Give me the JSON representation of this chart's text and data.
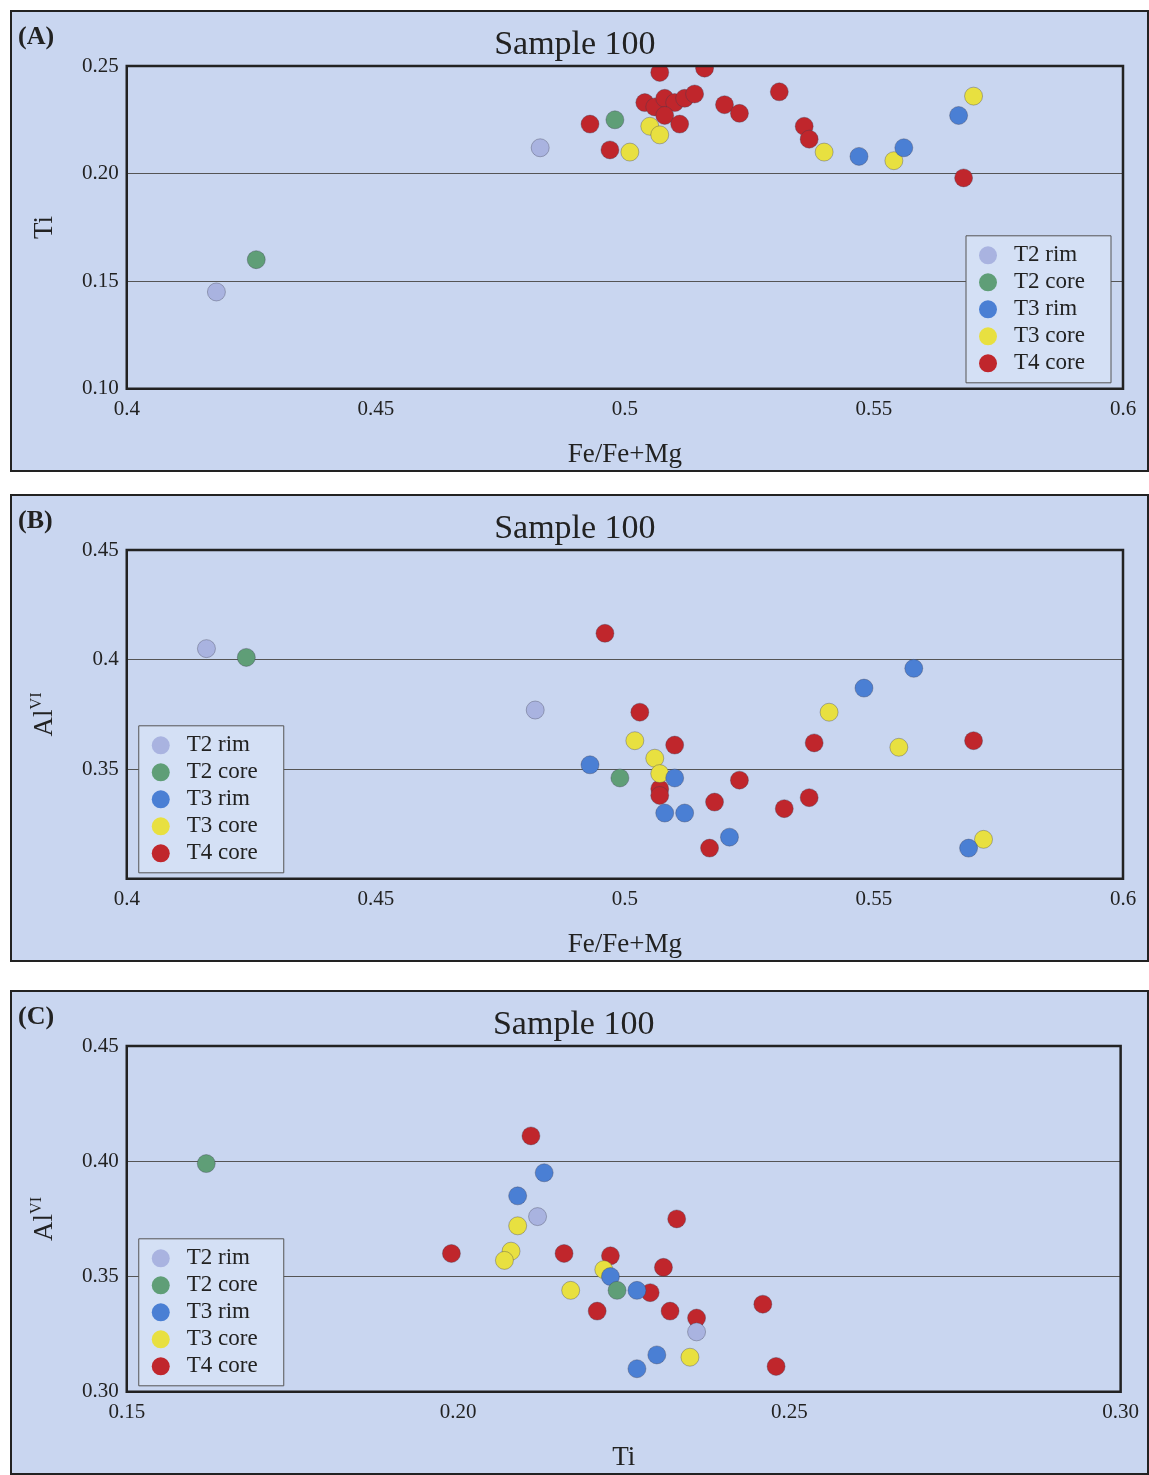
{
  "chart_data": [
    {
      "type": "scatter",
      "title": "Sample 100",
      "xlabel": "Fe/Fe+Mg",
      "ylabel": "Ti",
      "annotations": [
        "(A)"
      ],
      "xlim": [
        0.4,
        0.6
      ],
      "xticks": [
        0.4,
        0.45,
        0.5,
        0.55,
        0.6
      ],
      "ylim": [
        0.1,
        0.25
      ],
      "yticks": [
        {
          "value": 0.1,
          "label": "0.10"
        },
        {
          "value": 0.15,
          "label": "0.15"
        },
        {
          "value": 0.2,
          "label": "0.20"
        },
        {
          "value": 0.25,
          "label": "0.25"
        }
      ],
      "grid": "y",
      "legend": "bottom right",
      "marker": "circle",
      "series": [
        {
          "name": "T2 rim",
          "color": "#a9b3e0",
          "x": [
            0.418,
            0.483
          ],
          "values": [
            0.145,
            0.212
          ]
        },
        {
          "name": "T2 core",
          "color": "#5f9e77",
          "x": [
            0.426,
            0.498
          ],
          "values": [
            0.16,
            0.225
          ]
        },
        {
          "name": "T3 rim",
          "color": "#4a7fd4",
          "x": [
            0.547,
            0.556,
            0.567
          ],
          "values": [
            0.208,
            0.212,
            0.227
          ]
        },
        {
          "name": "T3 core",
          "color": "#e8e040",
          "x": [
            0.501,
            0.505,
            0.507,
            0.54,
            0.554,
            0.57
          ],
          "values": [
            0.21,
            0.222,
            0.218,
            0.21,
            0.206,
            0.236
          ]
        },
        {
          "name": "T4 core",
          "color": "#c0262c",
          "x": [
            0.493,
            0.497,
            0.507,
            0.516,
            0.504,
            0.506,
            0.508,
            0.51,
            0.512,
            0.514,
            0.508,
            0.511,
            0.52,
            0.523,
            0.531,
            0.536,
            0.537,
            0.568
          ],
          "values": [
            0.223,
            0.211,
            0.247,
            0.249,
            0.233,
            0.231,
            0.235,
            0.233,
            0.235,
            0.237,
            0.227,
            0.223,
            0.232,
            0.228,
            0.238,
            0.222,
            0.216,
            0.198
          ]
        }
      ]
    },
    {
      "type": "scatter",
      "title": "Sample 100",
      "xlabel": "Fe/Fe+Mg",
      "ylabel": "Al$^{VI}$",
      "annotations": [
        "(B)"
      ],
      "xlim": [
        0.4,
        0.6
      ],
      "xticks": [
        0.4,
        0.45,
        0.5,
        0.55,
        0.6
      ],
      "ylim": [
        0.3,
        0.45
      ],
      "yticks": [
        {
          "value": 0.3,
          "label": null
        },
        0.35,
        0.4,
        0.45
      ],
      "grid": "y",
      "legend": "bottom left",
      "marker": "circle",
      "series": [
        {
          "name": "T2 rim",
          "color": "#a9b3e0",
          "x": [
            0.416,
            0.482
          ],
          "values": [
            0.405,
            0.377
          ]
        },
        {
          "name": "T2 core",
          "color": "#5f9e77",
          "x": [
            0.424,
            0.499
          ],
          "values": [
            0.401,
            0.346
          ]
        },
        {
          "name": "T3 rim",
          "color": "#4a7fd4",
          "x": [
            0.493,
            0.51,
            0.508,
            0.512,
            0.521,
            0.548,
            0.558,
            0.569
          ],
          "values": [
            0.352,
            0.346,
            0.33,
            0.33,
            0.319,
            0.387,
            0.396,
            0.314
          ]
        },
        {
          "name": "T3 core",
          "color": "#e8e040",
          "x": [
            0.502,
            0.506,
            0.507,
            0.541,
            0.555,
            0.572
          ],
          "values": [
            0.363,
            0.355,
            0.348,
            0.376,
            0.36,
            0.318
          ]
        },
        {
          "name": "T4 core",
          "color": "#c0262c",
          "x": [
            0.496,
            0.503,
            0.51,
            0.507,
            0.507,
            0.518,
            0.517,
            0.523,
            0.532,
            0.537,
            0.538,
            0.57
          ],
          "values": [
            0.412,
            0.376,
            0.361,
            0.341,
            0.338,
            0.335,
            0.314,
            0.345,
            0.332,
            0.337,
            0.362,
            0.363
          ]
        }
      ]
    },
    {
      "type": "scatter",
      "title": "Sample 100",
      "xlabel": "Ti",
      "ylabel": "Al$^{VI}$",
      "annotations": [
        "(C)"
      ],
      "xlim": [
        0.15,
        0.3
      ],
      "xticks": [
        {
          "value": 0.15,
          "label": "0.15"
        },
        {
          "value": 0.2,
          "label": "0.20"
        },
        {
          "value": 0.25,
          "label": "0.25"
        },
        {
          "value": 0.3,
          "label": "0.30"
        }
      ],
      "ylim": [
        0.3,
        0.45
      ],
      "yticks": [
        {
          "value": 0.3,
          "label": "0.30"
        },
        {
          "value": 0.35,
          "label": "0.35"
        },
        {
          "value": 0.4,
          "label": "0.40"
        },
        {
          "value": 0.45,
          "label": "0.45"
        }
      ],
      "grid": "y",
      "legend": "bottom left",
      "marker": "circle",
      "series": [
        {
          "name": "T2 rim",
          "color": "#a9b3e0",
          "x": [
            0.212,
            0.236
          ],
          "values": [
            0.376,
            0.326
          ]
        },
        {
          "name": "T2 core",
          "color": "#5f9e77",
          "x": [
            0.162,
            0.224
          ],
          "values": [
            0.399,
            0.344
          ]
        },
        {
          "name": "T3 rim",
          "color": "#4a7fd4",
          "x": [
            0.209,
            0.213,
            0.223,
            0.227,
            0.23,
            0.227
          ],
          "values": [
            0.385,
            0.395,
            0.35,
            0.344,
            0.316,
            0.31
          ]
        },
        {
          "name": "T3 core",
          "color": "#e8e040",
          "x": [
            0.209,
            0.208,
            0.207,
            0.217,
            0.222,
            0.235
          ],
          "values": [
            0.372,
            0.361,
            0.357,
            0.344,
            0.353,
            0.315
          ]
        },
        {
          "name": "T4 core",
          "color": "#c0262c",
          "x": [
            0.211,
            0.199,
            0.216,
            0.223,
            0.221,
            0.229,
            0.231,
            0.233,
            0.232,
            0.236,
            0.246,
            0.248
          ],
          "values": [
            0.411,
            0.36,
            0.36,
            0.359,
            0.335,
            0.343,
            0.354,
            0.375,
            0.335,
            0.332,
            0.338,
            0.311
          ]
        }
      ]
    }
  ]
}
